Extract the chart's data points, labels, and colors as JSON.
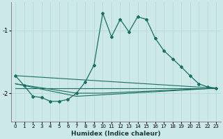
{
  "xlabel": "Humidex (Indice chaleur)",
  "x_ticks": [
    0,
    1,
    2,
    3,
    4,
    5,
    6,
    7,
    8,
    9,
    10,
    11,
    12,
    13,
    14,
    15,
    16,
    17,
    18,
    19,
    20,
    21,
    22,
    23
  ],
  "yticks": [
    -2,
    -1
  ],
  "ylim": [
    -2.45,
    -0.55
  ],
  "xlim": [
    -0.5,
    23.5
  ],
  "bg_color": "#cce8e8",
  "grid_color": "#b8d8d8",
  "line_color": "#1a6e62",
  "series": [
    [
      0,
      -1.72
    ],
    [
      1,
      -1.88
    ],
    [
      2,
      -2.05
    ],
    [
      3,
      -2.07
    ],
    [
      4,
      -2.13
    ],
    [
      5,
      -2.13
    ],
    [
      6,
      -2.1
    ],
    [
      7,
      -2.0
    ],
    [
      8,
      -1.82
    ],
    [
      9,
      -1.55
    ],
    [
      10,
      -0.72
    ],
    [
      11,
      -1.1
    ],
    [
      12,
      -0.82
    ],
    [
      13,
      -1.02
    ],
    [
      14,
      -0.78
    ],
    [
      15,
      -0.82
    ],
    [
      16,
      -1.12
    ],
    [
      17,
      -1.32
    ],
    [
      18,
      -1.45
    ],
    [
      19,
      -1.58
    ],
    [
      20,
      -1.72
    ],
    [
      21,
      -1.85
    ],
    [
      22,
      -1.9
    ],
    [
      23,
      -1.92
    ]
  ],
  "straight_lines": [
    [
      [
        0,
        -1.72
      ],
      [
        23,
        -1.92
      ]
    ],
    [
      [
        0,
        -1.85
      ],
      [
        7,
        -2.05
      ],
      [
        23,
        -1.92
      ]
    ],
    [
      [
        0,
        -1.85
      ],
      [
        7,
        -2.0
      ],
      [
        10,
        -2.0
      ],
      [
        23,
        -1.92
      ]
    ],
    [
      [
        0,
        -1.92
      ],
      [
        23,
        -1.92
      ]
    ]
  ]
}
